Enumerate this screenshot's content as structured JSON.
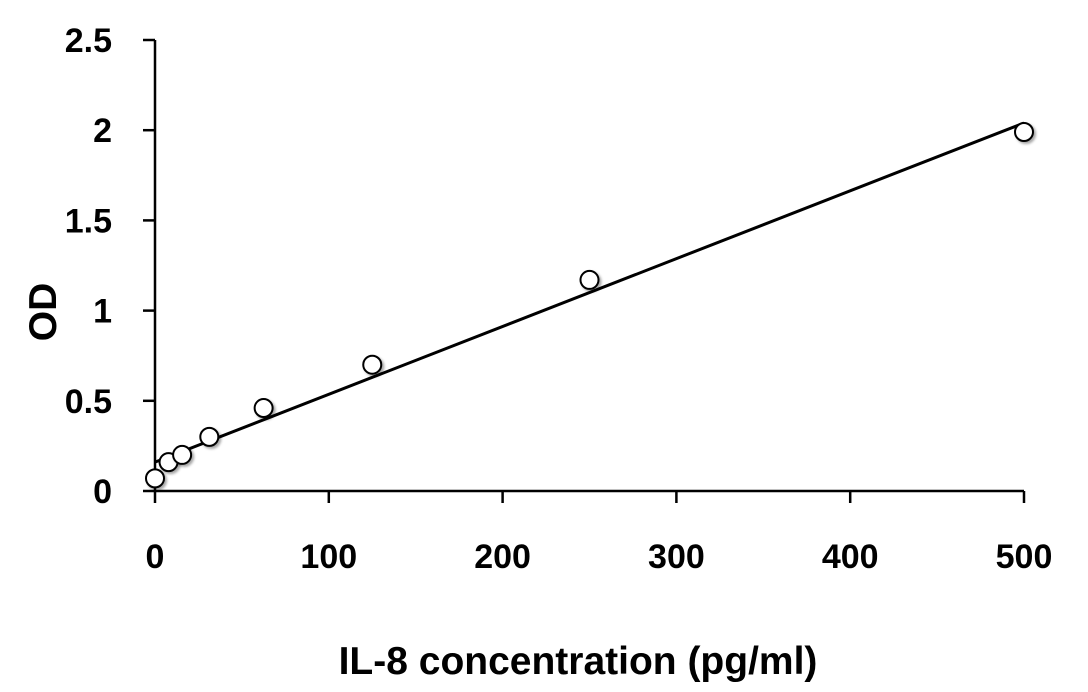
{
  "chart_data": {
    "type": "scatter",
    "title": "",
    "xlabel": "IL-8 concentration (pg/ml)",
    "ylabel": "OD",
    "xlim": [
      0,
      500
    ],
    "ylim": [
      0,
      2.5
    ],
    "xticks": [
      0,
      100,
      200,
      300,
      400,
      500
    ],
    "xtick_labels": [
      "0",
      "100",
      "200",
      "300",
      "400",
      "500"
    ],
    "yticks": [
      0,
      0.5,
      1,
      1.5,
      2,
      2.5
    ],
    "ytick_labels": [
      "0",
      "0.5",
      "1",
      "1.5",
      "2",
      "2.5"
    ],
    "grid": false,
    "legend": "none",
    "series": [
      {
        "x": [
          0,
          7.8,
          15.6,
          31.25,
          62.5,
          125,
          250,
          500
        ],
        "y": [
          0.07,
          0.16,
          0.2,
          0.3,
          0.46,
          0.7,
          1.17,
          1.99
        ],
        "marker": "open-circle",
        "color": "#000000"
      }
    ],
    "trendline": {
      "type": "linear",
      "x": [
        0,
        500
      ],
      "y": [
        0.16,
        2.04
      ],
      "color": "#000000"
    }
  }
}
